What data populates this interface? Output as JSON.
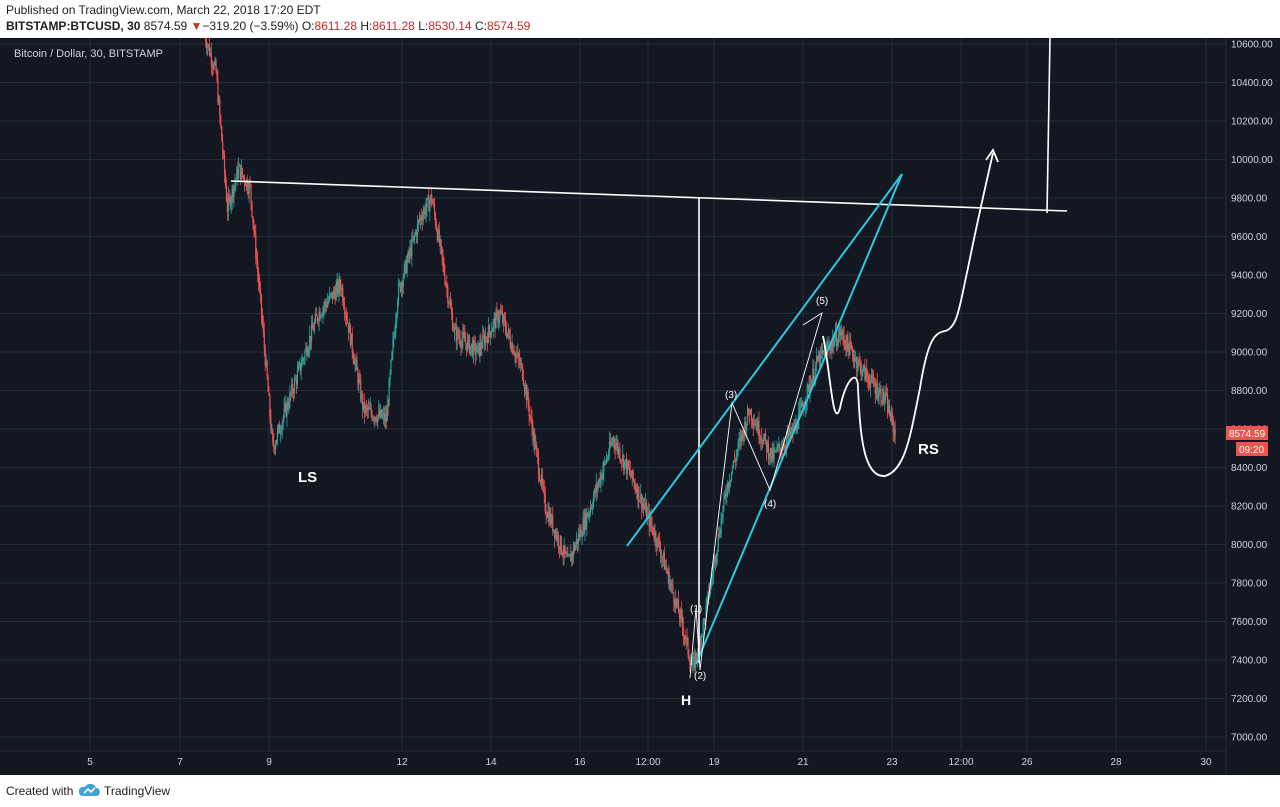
{
  "header": {
    "published": "Published on TradingView.com, March 22, 2018 17:20 EDT",
    "symbol": "BITSTAMP:BTCUSD, 30",
    "last": "8574.59",
    "change": "−319.20 (−3.59%)",
    "o_label": "O:",
    "o_value": "8611.28",
    "h_label": "H:",
    "h_value": "8611.28",
    "l_label": "L:",
    "l_value": "8530.14",
    "c_label": "C:",
    "c_value": "8574.59"
  },
  "footer": {
    "created_with": "Created with",
    "brand": "TradingView"
  },
  "chart_data": {
    "type": "candlestick",
    "title": "Bitcoin / Dollar, 30, BITSTAMP",
    "y_ticks": [
      7000,
      7200,
      7400,
      7600,
      7800,
      8000,
      8200,
      8400,
      8600,
      8800,
      9000,
      9200,
      9400,
      9600,
      9800,
      10000,
      10200,
      10400,
      10600
    ],
    "y_tick_labels": [
      "7000.00",
      "7200.00",
      "7400.00",
      "7600.00",
      "7800.00",
      "8000.00",
      "8200.00",
      "8400.00",
      "8600.00",
      "8800.00",
      "9000.00",
      "9200.00",
      "9400.00",
      "9600.00",
      "9800.00",
      "10000.00",
      "10200.00",
      "10400.00",
      "10600.00"
    ],
    "ylim": [
      6850,
      10710
    ],
    "x_ticks": [
      "5",
      "7",
      "9",
      "12",
      "14",
      "16",
      "12:00",
      "19",
      "21",
      "23",
      "12:00",
      "26",
      "28",
      "30"
    ],
    "price_badge": "8574.59",
    "countdown_badge": "09:20",
    "price_path": [
      [
        "Mar 7 12:00",
        10650
      ],
      [
        "Mar 7 18:00",
        10450
      ],
      [
        "Mar 8 00:00",
        9750
      ],
      [
        "Mar 8 06:00",
        9950
      ],
      [
        "Mar 8 12:00",
        9850
      ],
      [
        "Mar 8 18:00",
        9200
      ],
      [
        "Mar 9 00:00",
        8500
      ],
      [
        "Mar 9 12:00",
        8850
      ],
      [
        "Mar 10 00:00",
        9200
      ],
      [
        "Mar 10 12:00",
        9350
      ],
      [
        "Mar 11 00:00",
        8700
      ],
      [
        "Mar 11 12:00",
        8650
      ],
      [
        "Mar 11 18:00",
        9300
      ],
      [
        "Mar 12 06:00",
        9700
      ],
      [
        "Mar 12 12:00",
        9800
      ],
      [
        "Mar 13 00:00",
        9100
      ],
      [
        "Mar 13 12:00",
        9000
      ],
      [
        "Mar 14 00:00",
        9200
      ],
      [
        "Mar 14 12:00",
        8900
      ],
      [
        "Mar 15 00:00",
        8200
      ],
      [
        "Mar 15 12:00",
        7900
      ],
      [
        "Mar 16 00:00",
        8200
      ],
      [
        "Mar 16 12:00",
        8550
      ],
      [
        "Mar 17 00:00",
        8300
      ],
      [
        "Mar 17 12:00",
        8000
      ],
      [
        "Mar 18 00:00",
        7600
      ],
      [
        "Mar 18 06:00",
        7350
      ],
      [
        "Mar 18 12:00",
        7600
      ],
      [
        "Mar 19 00:00",
        8300
      ],
      [
        "Mar 19 12:00",
        8700
      ],
      [
        "Mar 20 00:00",
        8450
      ],
      [
        "Mar 20 12:00",
        8600
      ],
      [
        "Mar 21 00:00",
        8950
      ],
      [
        "Mar 21 12:00",
        9100
      ],
      [
        "Mar 22 00:00",
        8900
      ],
      [
        "Mar 22 12:00",
        8750
      ],
      [
        "Mar 22 17:00",
        8574.59
      ]
    ],
    "annotations": {
      "shoulder_left": "LS",
      "head": "H",
      "shoulder_right": "RS",
      "waves": [
        "(1)",
        "(2)",
        "(3)",
        "(4)",
        "(5)"
      ]
    },
    "colors": {
      "background": "#131722",
      "up": "#26a69a",
      "down": "#ef5350",
      "drawing": "#ffffff",
      "channel": "#2ec7e0",
      "grid": "#262b3b"
    }
  }
}
